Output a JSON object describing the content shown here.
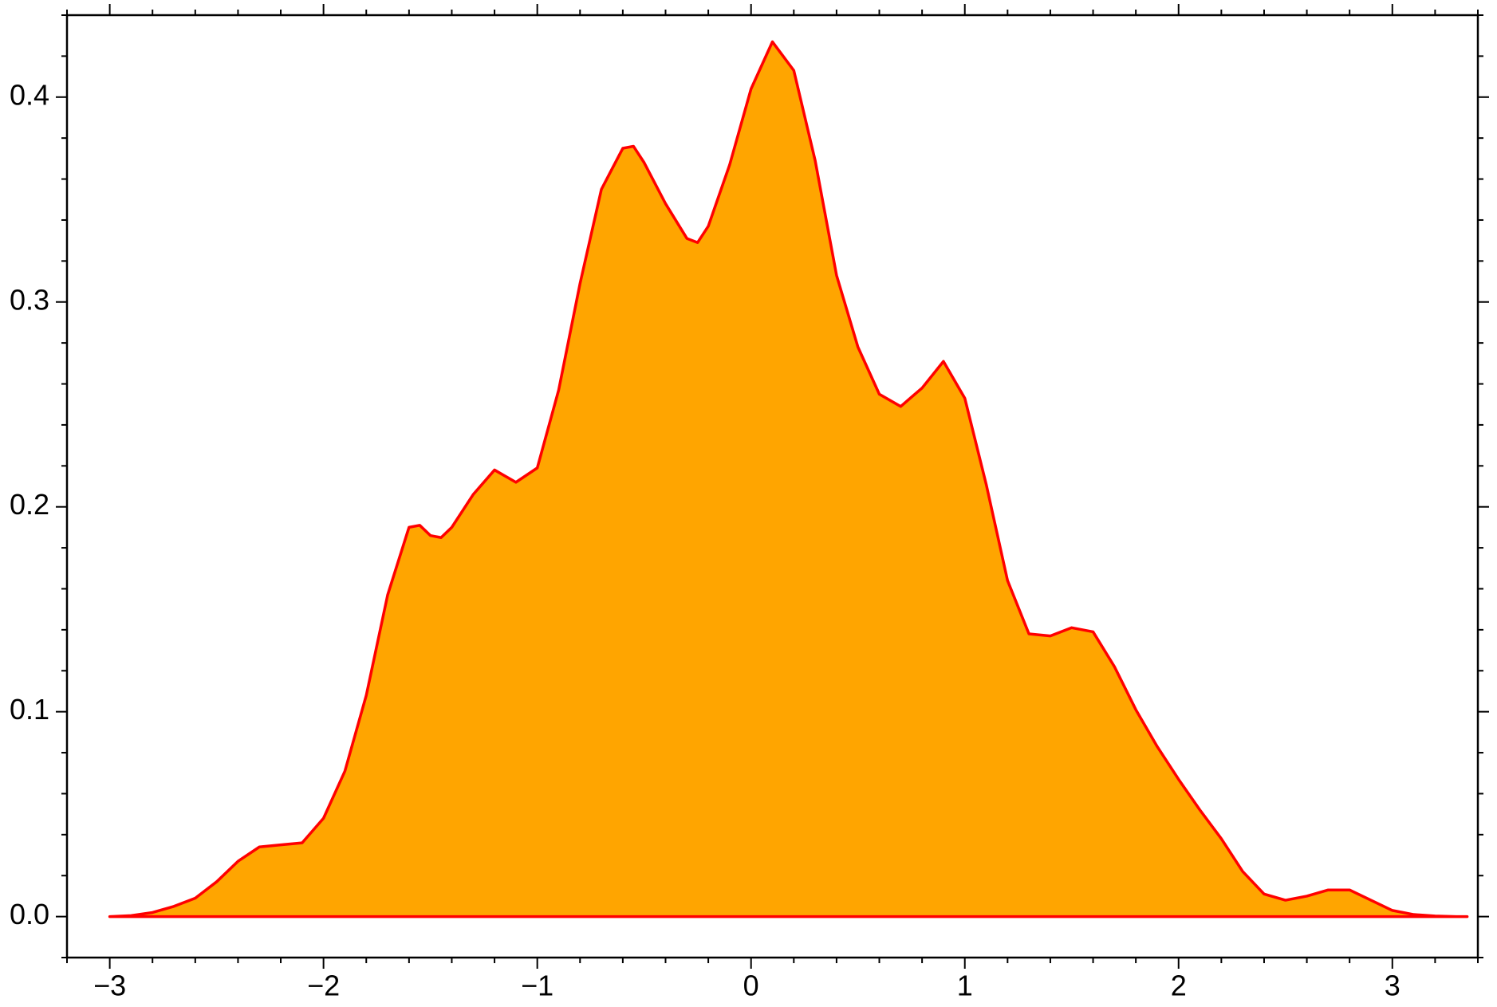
{
  "chart_data": {
    "type": "area",
    "x": [
      -3.0,
      -2.9,
      -2.8,
      -2.7,
      -2.6,
      -2.5,
      -2.4,
      -2.3,
      -2.2,
      -2.1,
      -2.0,
      -1.9,
      -1.8,
      -1.7,
      -1.6,
      -1.55,
      -1.5,
      -1.45,
      -1.4,
      -1.3,
      -1.2,
      -1.1,
      -1.0,
      -0.9,
      -0.8,
      -0.7,
      -0.6,
      -0.55,
      -0.5,
      -0.4,
      -0.3,
      -0.25,
      -0.2,
      -0.1,
      0.0,
      0.1,
      0.2,
      0.3,
      0.4,
      0.5,
      0.6,
      0.7,
      0.8,
      0.9,
      1.0,
      1.1,
      1.2,
      1.3,
      1.4,
      1.5,
      1.6,
      1.7,
      1.8,
      1.9,
      2.0,
      2.1,
      2.2,
      2.3,
      2.4,
      2.5,
      2.6,
      2.7,
      2.8,
      2.9,
      3.0,
      3.1,
      3.2,
      3.3,
      3.35
    ],
    "values": [
      0,
      0.0005,
      0.002,
      0.005,
      0.009,
      0.017,
      0.027,
      0.034,
      0.035,
      0.036,
      0.048,
      0.071,
      0.108,
      0.157,
      0.19,
      0.191,
      0.186,
      0.185,
      0.19,
      0.206,
      0.218,
      0.212,
      0.219,
      0.257,
      0.309,
      0.355,
      0.375,
      0.376,
      0.368,
      0.348,
      0.331,
      0.329,
      0.337,
      0.367,
      0.404,
      0.427,
      0.413,
      0.369,
      0.313,
      0.278,
      0.255,
      0.249,
      0.258,
      0.271,
      0.253,
      0.211,
      0.164,
      0.138,
      0.137,
      0.141,
      0.139,
      0.122,
      0.101,
      0.083,
      0.067,
      0.052,
      0.038,
      0.022,
      0.011,
      0.008,
      0.01,
      0.013,
      0.013,
      0.008,
      0.003,
      0.001,
      0.0003,
      0,
      0
    ],
    "color": "#ffa500",
    "line_color": "#ff0000",
    "xlim": [
      -3.2,
      3.4
    ],
    "xticks": [
      {
        "value": -3,
        "label": "−3"
      },
      {
        "value": -2,
        "label": "−2"
      },
      {
        "value": -1,
        "label": "−1"
      },
      0,
      1,
      2,
      3
    ],
    "xminorticks": [
      -3.2,
      -2.8,
      -2.6,
      -2.4,
      -2.2,
      -1.8,
      -1.6,
      -1.4,
      -1.2,
      -0.8,
      -0.6,
      -0.4,
      -0.2,
      0.2,
      0.4,
      0.6,
      0.8,
      1.2,
      1.4,
      1.6,
      1.8,
      2.2,
      2.4,
      2.6,
      2.8,
      3.2,
      3.4
    ],
    "ylim": [
      -0.02,
      0.44
    ],
    "yticks": [
      {
        "value": 0,
        "label": "0.0"
      },
      0.1,
      0.2,
      0.3,
      0.4
    ],
    "yminorticks": [
      -0.02,
      0.02,
      0.04,
      0.06,
      0.08,
      0.12,
      0.14,
      0.16,
      0.18,
      0.22,
      0.24,
      0.26,
      0.28,
      0.32,
      0.34,
      0.36,
      0.38,
      0.42,
      0.44
    ]
  }
}
